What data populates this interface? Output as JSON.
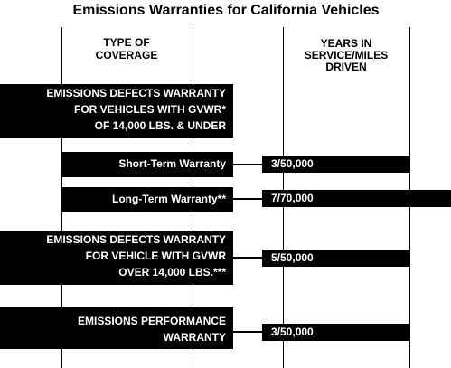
{
  "title": "Emissions Warranties for California Vehicles",
  "columns": [
    [
      "TYPE OF",
      "COVERAGE"
    ],
    [
      "YEARS IN",
      "SERVICE/MILES",
      "DRIVEN"
    ]
  ],
  "rows": [
    {
      "label": [
        "EMISSIONS DEFECTS WARRANTY",
        "FOR VEHICLES WITH GVWR*",
        "OF 14,000 LBS. & UNDER"
      ],
      "items": [
        {
          "label": "Short-Term Warranty",
          "value": "3/50,000"
        },
        {
          "label": "Long-Term Warranty**",
          "value": "7/70,000"
        }
      ]
    },
    {
      "label": [
        "EMISSIONS DEFECTS WARRANTY",
        "FOR VEHICLE WITH GVWR",
        "OVER 14,000 LBS.***"
      ],
      "value": "5/50,000"
    },
    {
      "label": [
        "EMISSIONS PERFORMANCE",
        "WARRANTY"
      ],
      "value": "3/50,000"
    }
  ]
}
